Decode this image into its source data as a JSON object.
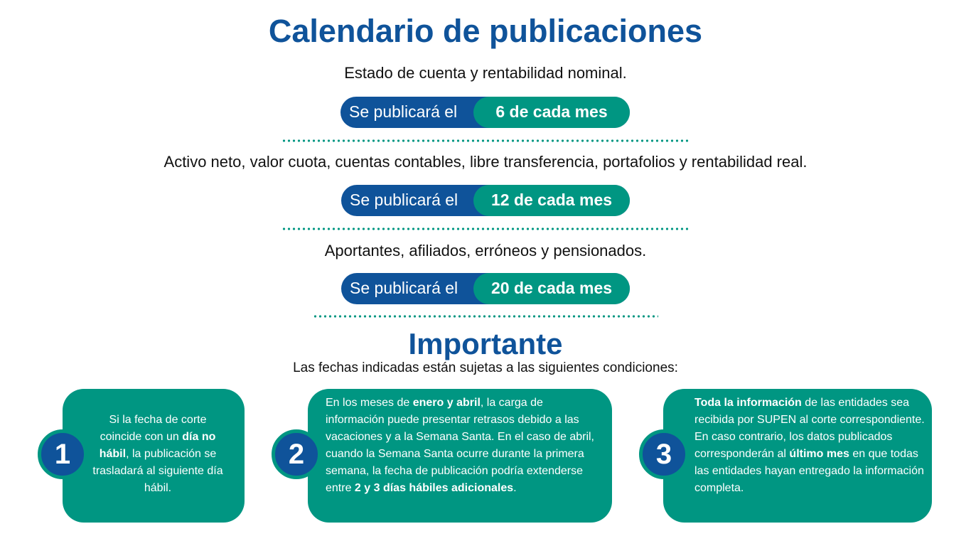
{
  "title": "Calendario de publicaciones",
  "colors": {
    "blue": "#0f539a",
    "teal": "#009682"
  },
  "schedules": [
    {
      "description": "Estado de cuenta y rentabilidad nominal.",
      "prefix": "Se publicará el",
      "day": "6 de cada mes"
    },
    {
      "description": "Activo neto, valor cuota, cuentas contables, libre transferencia, portafolios y rentabilidad real.",
      "prefix": "Se publicará el",
      "day": "12 de cada mes"
    },
    {
      "description": "Aportantes, afiliados, erróneos y pensionados.",
      "prefix": "Se publicará el",
      "day": "20 de cada mes"
    }
  ],
  "important": {
    "heading": "Importante",
    "subtitle": "Las fechas indicadas están sujetas a las siguientes condiciones:",
    "conditions": [
      {
        "number": "1",
        "segments": [
          {
            "t": "Si la fecha de corte coincide con un "
          },
          {
            "t": "día no hábil",
            "b": true
          },
          {
            "t": ", la publicación se trasladará al siguiente día hábil."
          }
        ]
      },
      {
        "number": "2",
        "segments": [
          {
            "t": "En los meses de "
          },
          {
            "t": "enero y abril",
            "b": true
          },
          {
            "t": ", la carga de información puede presentar retrasos debido a las vacaciones y a la Semana Santa. En el caso de abril, cuando la Semana Santa ocurre durante la primera semana, la fecha de publicación podría extenderse entre "
          },
          {
            "t": "2 y 3 días hábiles adicionales",
            "b": true
          },
          {
            "t": "."
          }
        ]
      },
      {
        "number": "3",
        "segments": [
          {
            "t": "Toda la información",
            "b": true
          },
          {
            "t": " de las entidades sea recibida por SUPEN al corte correspondiente. En caso contrario, los datos publicados corresponderán al "
          },
          {
            "t": "último mes",
            "b": true
          },
          {
            "t": " en que todas las entidades hayan entregado la información completa."
          }
        ]
      }
    ]
  }
}
